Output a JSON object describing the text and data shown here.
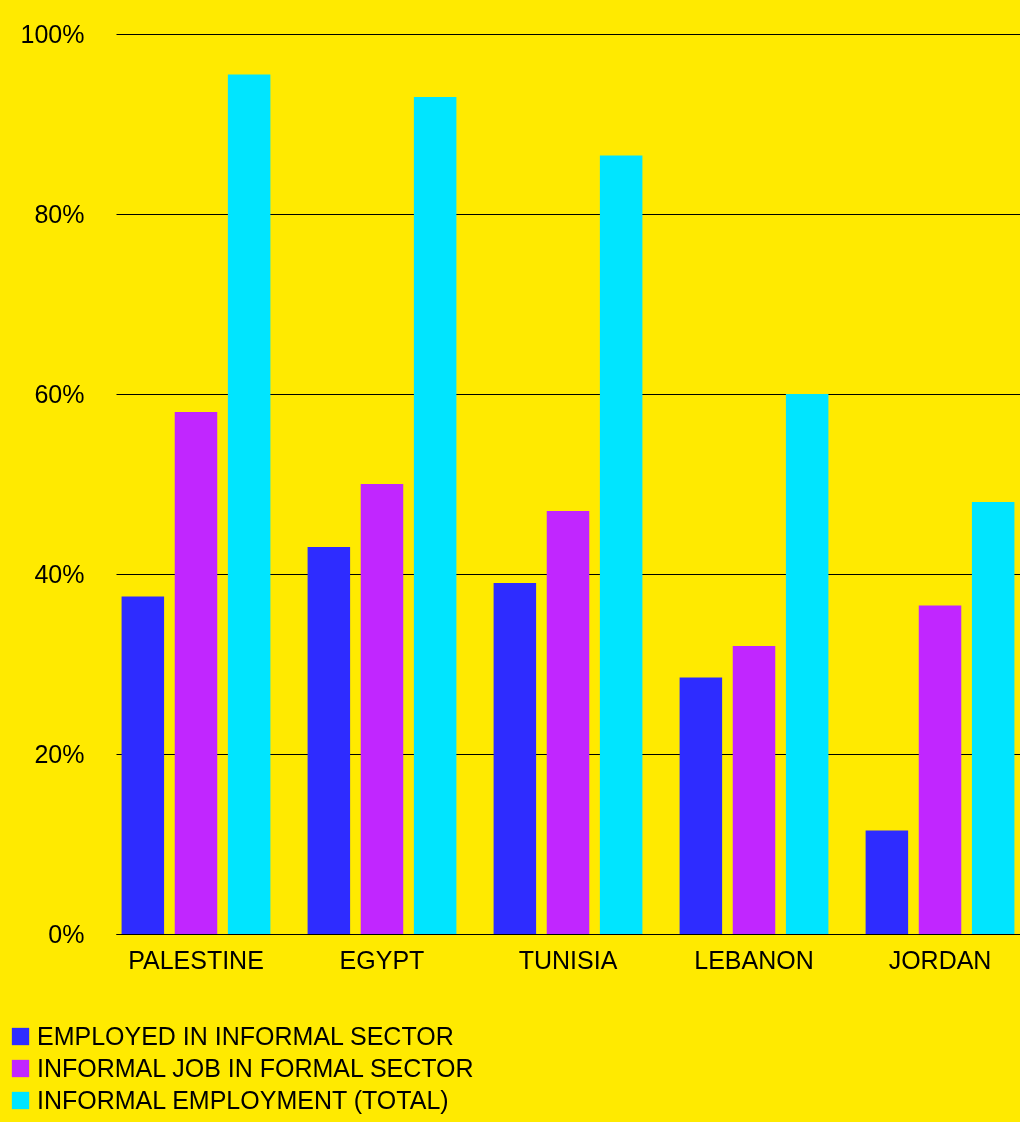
{
  "chart_data": {
    "type": "bar",
    "categories": [
      "PALESTINE",
      "EGYPT",
      "TUNISIA",
      "LEBANON",
      "JORDAN"
    ],
    "series": [
      {
        "name": "EMPLOYED IN INFORMAL SECTOR",
        "color": "#2e2cff",
        "values": [
          37.5,
          43,
          39,
          28.5,
          11.5
        ]
      },
      {
        "name": "INFORMAL JOB IN FORMAL SECTOR",
        "color": "#c126ff",
        "values": [
          58,
          50,
          47,
          32,
          36.5
        ]
      },
      {
        "name": "INFORMAL EMPLOYMENT (TOTAL)",
        "color": "#00e5ff",
        "values": [
          95.5,
          93,
          86.5,
          60,
          48
        ]
      }
    ],
    "ylim": [
      0,
      100
    ],
    "yticks": [
      {
        "value": 0,
        "label": "0%"
      },
      {
        "value": 20,
        "label": "20%"
      },
      {
        "value": 40,
        "label": "40%"
      },
      {
        "value": 60,
        "label": "60%"
      },
      {
        "value": 80,
        "label": "80%"
      },
      {
        "value": 100,
        "label": "100%"
      }
    ],
    "grid": "y",
    "legend": "bottom left"
  }
}
